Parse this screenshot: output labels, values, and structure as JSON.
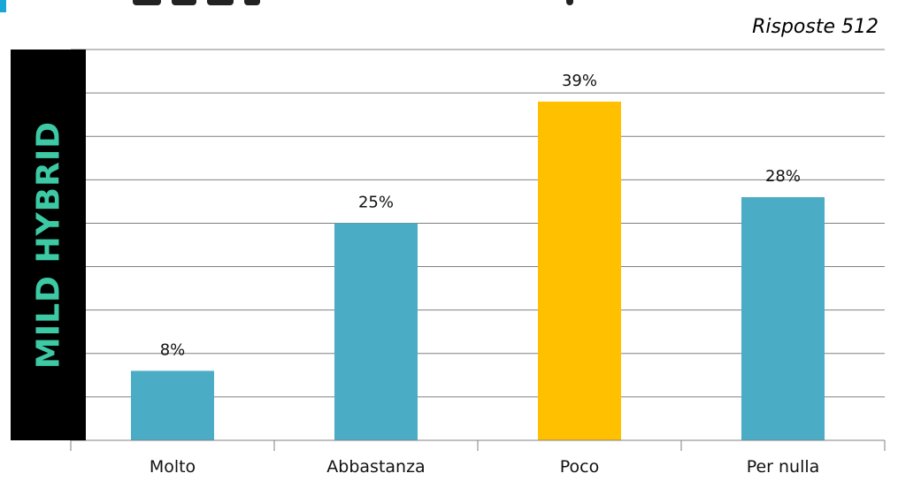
{
  "responses_label": "Risposte 512",
  "side_label": "MILD HYBRID",
  "colors": {
    "bar": "#4bacc6",
    "highlight": "#ffc000",
    "grid": "#808080",
    "side_bg": "#000000",
    "side_text": "#3cc9a4"
  },
  "chart_data": {
    "type": "bar",
    "categories": [
      "Molto",
      "Abbastanza",
      "Poco",
      "Per nulla"
    ],
    "values": [
      8,
      25,
      39,
      28
    ],
    "value_labels": [
      "8%",
      "25%",
      "39%",
      "28%"
    ],
    "highlight_index": 2,
    "ylim": [
      0,
      45
    ],
    "title": "",
    "xlabel": "",
    "ylabel": "",
    "grid": true
  }
}
